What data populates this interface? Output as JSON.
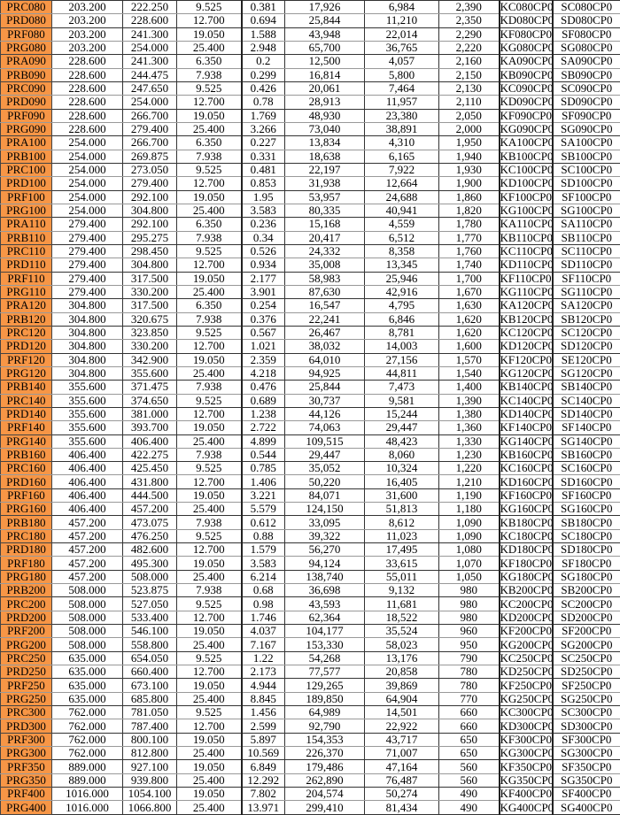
{
  "table": {
    "accent_color": "#f79646",
    "rows": [
      [
        "PRC080",
        "203.200",
        "222.250",
        "9.525",
        "0.381",
        "17,926",
        "6,984",
        "2,390",
        "KC080CP0",
        "SC080CP0"
      ],
      [
        "PRD080",
        "203.200",
        "228.600",
        "12.700",
        "0.694",
        "25,844",
        "11,210",
        "2,350",
        "KD080CP0",
        "SD080CP0"
      ],
      [
        "PRF080",
        "203.200",
        "241.300",
        "19.050",
        "1.588",
        "43,948",
        "22,014",
        "2,290",
        "KF080CP0",
        "SF080CP0"
      ],
      [
        "PRG080",
        "203.200",
        "254.000",
        "25.400",
        "2.948",
        "65,700",
        "36,765",
        "2,220",
        "KG080CP0",
        "SG080CP0"
      ],
      [
        "PRA090",
        "228.600",
        "241.300",
        "6.350",
        "0.2",
        "12,500",
        "4,057",
        "2,160",
        "KA090CP0",
        "SA090CP0"
      ],
      [
        "PRB090",
        "228.600",
        "244.475",
        "7.938",
        "0.299",
        "16,814",
        "5,800",
        "2,150",
        "KB090CP0",
        "SB090CP0"
      ],
      [
        "PRC090",
        "228.600",
        "247.650",
        "9.525",
        "0.426",
        "20,061",
        "7,464",
        "2,130",
        "KC090CP0",
        "SC090CP0"
      ],
      [
        "PRD090",
        "228.600",
        "254.000",
        "12.700",
        "0.78",
        "28,913",
        "11,957",
        "2,110",
        "KD090CP0",
        "SD090CP0"
      ],
      [
        "PRF090",
        "228.600",
        "266.700",
        "19.050",
        "1.769",
        "48,930",
        "23,380",
        "2,050",
        "KF090CP0",
        "SF090CP0"
      ],
      [
        "PRG090",
        "228.600",
        "279.400",
        "25.400",
        "3.266",
        "73,040",
        "38,891",
        "2,000",
        "KG090CP0",
        "SG090CP0"
      ],
      [
        "PRA100",
        "254.000",
        "266.700",
        "6.350",
        "0.227",
        "13,834",
        "4,310",
        "1,950",
        "KA100CP0",
        "SA100CP0"
      ],
      [
        "PRB100",
        "254.000",
        "269.875",
        "7.938",
        "0.331",
        "18,638",
        "6,165",
        "1,940",
        "KB100CP0",
        "SB100CP0"
      ],
      [
        "PRC100",
        "254.000",
        "273.050",
        "9.525",
        "0.481",
        "22,197",
        "7,922",
        "1,930",
        "KC100CP0",
        "SC100CP0"
      ],
      [
        "PRD100",
        "254.000",
        "279.400",
        "12.700",
        "0.853",
        "31,938",
        "12,664",
        "1,900",
        "KD100CP0",
        "SD100CP0"
      ],
      [
        "PRF100",
        "254.000",
        "292.100",
        "19.050",
        "1.95",
        "53,957",
        "24,688",
        "1,860",
        "KF100CP0",
        "SF100CP0"
      ],
      [
        "PRG100",
        "254.000",
        "304.800",
        "25.400",
        "3.583",
        "80,335",
        "40,941",
        "1,820",
        "KG100CP0",
        "SG100CP0"
      ],
      [
        "PRA110",
        "279.400",
        "292.100",
        "6.350",
        "0.236",
        "15,168",
        "4,559",
        "1,780",
        "KA110CP0",
        "SA110CP0"
      ],
      [
        "PRB110",
        "279.400",
        "295.275",
        "7.938",
        "0.34",
        "20,417",
        "6,512",
        "1,770",
        "KB110CP0",
        "SB110CP0"
      ],
      [
        "PRC110",
        "279.400",
        "298.450",
        "9.525",
        "0.526",
        "24,332",
        "8,358",
        "1,760",
        "KC110CP0",
        "SC110CP0"
      ],
      [
        "PRD110",
        "279.400",
        "304.800",
        "12.700",
        "0.934",
        "35,008",
        "13,345",
        "1,740",
        "KD110CP0",
        "SD110CP0"
      ],
      [
        "PRF110",
        "279.400",
        "317.500",
        "19.050",
        "2.177",
        "58,983",
        "25,946",
        "1,700",
        "KF110CP0",
        "SF110CP0"
      ],
      [
        "PRG110",
        "279.400",
        "330.200",
        "25.400",
        "3.901",
        "87,630",
        "42,916",
        "1,670",
        "KG110CP0",
        "SG110CP0"
      ],
      [
        "PRA120",
        "304.800",
        "317.500",
        "6.350",
        "0.254",
        "16,547",
        "4,795",
        "1,630",
        "KA120CP0",
        "SA120CP0"
      ],
      [
        "PRB120",
        "304.800",
        "320.675",
        "7.938",
        "0.376",
        "22,241",
        "6,846",
        "1,620",
        "KB120CP0",
        "SB120CP0"
      ],
      [
        "PRC120",
        "304.800",
        "323.850",
        "9.525",
        "0.567",
        "26,467",
        "8,781",
        "1,620",
        "KC120CP0",
        "SC120CP0"
      ],
      [
        "PRD120",
        "304.800",
        "330.200",
        "12.700",
        "1.021",
        "38,032",
        "14,003",
        "1,600",
        "KD120CP0",
        "SD120CP0"
      ],
      [
        "PRF120",
        "304.800",
        "342.900",
        "19.050",
        "2.359",
        "64,010",
        "27,156",
        "1,570",
        "KF120CP0",
        "SE120CP0"
      ],
      [
        "PRG120",
        "304.800",
        "355.600",
        "25.400",
        "4.218",
        "94,925",
        "44,811",
        "1,540",
        "KG120CP0",
        "SG120CP0"
      ],
      [
        "PRB140",
        "355.600",
        "371.475",
        "7.938",
        "0.476",
        "25,844",
        "7,473",
        "1,400",
        "KB140CP0",
        "SB140CP0"
      ],
      [
        "PRC140",
        "355.600",
        "374.650",
        "9.525",
        "0.689",
        "30,737",
        "9,581",
        "1,390",
        "KC140CP0",
        "SC140CP0"
      ],
      [
        "PRD140",
        "355.600",
        "381.000",
        "12.700",
        "1.238",
        "44,126",
        "15,244",
        "1,380",
        "KD140CP0",
        "SD140CP0"
      ],
      [
        "PRF140",
        "355.600",
        "393.700",
        "19.050",
        "2.722",
        "74,063",
        "29,447",
        "1,360",
        "KF140CP0",
        "SF140CP0"
      ],
      [
        "PRG140",
        "355.600",
        "406.400",
        "25.400",
        "4.899",
        "109,515",
        "48,423",
        "1,330",
        "KG140CP0",
        "SG140CP0"
      ],
      [
        "PRB160",
        "406.400",
        "422.275",
        "7.938",
        "0.544",
        "29,447",
        "8,060",
        "1,230",
        "KB160CP0",
        "SB160CP0"
      ],
      [
        "PRC160",
        "406.400",
        "425.450",
        "9.525",
        "0.785",
        "35,052",
        "10,324",
        "1,220",
        "KC160CP0",
        "SC160CP0"
      ],
      [
        "PRD160",
        "406.400",
        "431.800",
        "12.700",
        "1.406",
        "50,220",
        "16,405",
        "1,210",
        "KD160CP0",
        "SD160CP0"
      ],
      [
        "PRF160",
        "406.400",
        "444.500",
        "19.050",
        "3.221",
        "84,071",
        "31,600",
        "1,190",
        "KF160CP0",
        "SF160CP0"
      ],
      [
        "PRG160",
        "406.400",
        "457.200",
        "25.400",
        "5.579",
        "124,150",
        "51,813",
        "1,180",
        "KG160CP0",
        "SG160CP0"
      ],
      [
        "PRB180",
        "457.200",
        "473.075",
        "7.938",
        "0.612",
        "33,095",
        "8,612",
        "1,090",
        "KB180CP0",
        "SB180CP0"
      ],
      [
        "PRC180",
        "457.200",
        "476.250",
        "9.525",
        "0.88",
        "39,322",
        "11,023",
        "1,090",
        "KC180CP0",
        "SC180CP0"
      ],
      [
        "PRD180",
        "457.200",
        "482.600",
        "12.700",
        "1.579",
        "56,270",
        "17,495",
        "1,080",
        "KD180CP0",
        "SD180CP0"
      ],
      [
        "PRF180",
        "457.200",
        "495.300",
        "19.050",
        "3.583",
        "94,124",
        "33,615",
        "1,070",
        "KF180CP0",
        "SF180CP0"
      ],
      [
        "PRG180",
        "457.200",
        "508.000",
        "25.400",
        "6.214",
        "138,740",
        "55,011",
        "1,050",
        "KG180CP0",
        "SG180CP0"
      ],
      [
        "PRB200",
        "508.000",
        "523.875",
        "7.938",
        "0.68",
        "36,698",
        "9,132",
        "980",
        "KB200CP0",
        "SB200CP0"
      ],
      [
        "PRC200",
        "508.000",
        "527.050",
        "9.525",
        "0.98",
        "43,593",
        "11,681",
        "980",
        "KC200CP0",
        "SC200CP0"
      ],
      [
        "PRD200",
        "508.000",
        "533.400",
        "12.700",
        "1.746",
        "62,364",
        "18,522",
        "980",
        "KD200CP0",
        "SD200CP0"
      ],
      [
        "PRF200",
        "508.000",
        "546.100",
        "19.050",
        "4.037",
        "104,177",
        "35,524",
        "960",
        "KF200CP0",
        "SF200CP0"
      ],
      [
        "PRG200",
        "508.000",
        "558.800",
        "25.400",
        "7.167",
        "153,330",
        "58,023",
        "950",
        "KG200CP0",
        "SG200CP0"
      ],
      [
        "PRC250",
        "635.000",
        "654.050",
        "9.525",
        "1.22",
        "54,268",
        "13,176",
        "790",
        "KC250CP0",
        "SC250CP0"
      ],
      [
        "PRD250",
        "635.000",
        "660.400",
        "12.700",
        "2.173",
        "77,577",
        "20,858",
        "780",
        "KD250CP0",
        "SD250CP0"
      ],
      [
        "PRF250",
        "635.000",
        "673.100",
        "19.050",
        "4.944",
        "129,265",
        "39,869",
        "780",
        "KF250CP0",
        "SF250CP0"
      ],
      [
        "PRG250",
        "635.000",
        "685.800",
        "25.400",
        "8.845",
        "189,850",
        "64,904",
        "770",
        "KG250CP0",
        "SG250CP0"
      ],
      [
        "PRC300",
        "762.000",
        "781.050",
        "9.525",
        "1.456",
        "64,989",
        "14,501",
        "660",
        "KC300CP0",
        "SC300CP0"
      ],
      [
        "PRD300",
        "762.000",
        "787.400",
        "12.700",
        "2.599",
        "92,790",
        "22,922",
        "660",
        "KD300CP0",
        "SD300CP0"
      ],
      [
        "PRF300",
        "762.000",
        "800.100",
        "19.050",
        "5.897",
        "154,353",
        "43,717",
        "650",
        "KF300CP0",
        "SF300CP0"
      ],
      [
        "PRG300",
        "762.000",
        "812.800",
        "25.400",
        "10.569",
        "226,370",
        "71,007",
        "650",
        "KG300CP0",
        "SG300CP0"
      ],
      [
        "PRF350",
        "889.000",
        "927.100",
        "19.050",
        "6.849",
        "179,486",
        "47,164",
        "560",
        "KF350CP0",
        "SF350CP0"
      ],
      [
        "PRG350",
        "889.000",
        "939.800",
        "25.400",
        "12.292",
        "262,890",
        "76,487",
        "560",
        "KG350CP0",
        "SG350CP0"
      ],
      [
        "PRF400",
        "1016.000",
        "1054.100",
        "19.050",
        "7.802",
        "204,574",
        "50,274",
        "490",
        "KF400CP0",
        "SF400CP0"
      ],
      [
        "PRG400",
        "1016.000",
        "1066.800",
        "25.400",
        "13.971",
        "299,410",
        "81,434",
        "490",
        "KG400CP0",
        "SG400CP0"
      ]
    ]
  }
}
